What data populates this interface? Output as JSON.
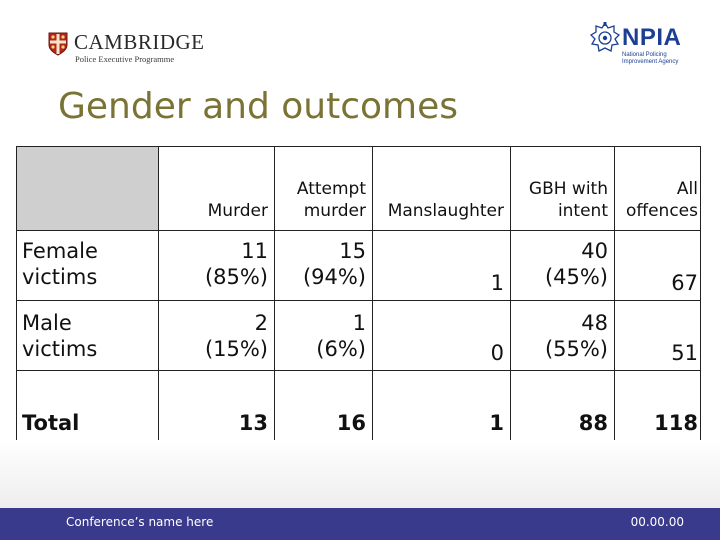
{
  "header": {
    "cambridge_name": "CAMBRIDGE",
    "cambridge_sub": "Police Executive Programme",
    "npia_name": "NPIA",
    "npia_sub_1": "National Policing",
    "npia_sub_2": "Improvement Agency"
  },
  "title": "Gender and outcomes",
  "table": {
    "columns": {
      "murder": "Murder",
      "attempt_1": "Attempt",
      "attempt_2": "murder",
      "manslaughter": "Manslaughter",
      "gbh_1": "GBH with",
      "gbh_2": "intent",
      "all_1": "All",
      "all_2": "offences"
    },
    "rows": {
      "female": {
        "label_1": "Female",
        "label_2": "victims",
        "murder_n": "11",
        "murder_p": "(85%)",
        "attempt_n": "15",
        "attempt_p": "(94%)",
        "manslaughter": "1",
        "gbh_n": "40",
        "gbh_p": "(45%)",
        "all": "67"
      },
      "male": {
        "label_1": "Male",
        "label_2": "victims",
        "murder_n": "2",
        "murder_p": "(15%)",
        "attempt_n": "1",
        "attempt_p": "(6%)",
        "manslaughter": "0",
        "gbh_n": "48",
        "gbh_p": "(55%)",
        "all": "51"
      },
      "total": {
        "label": "Total",
        "murder": "13",
        "attempt": "16",
        "manslaughter": "1",
        "gbh": "88",
        "all": "118"
      }
    }
  },
  "footer": {
    "left": "Conference’s name here",
    "right": "00.00.00"
  },
  "colors": {
    "title": "#7a7334",
    "footer_bar": "#3a3a8c",
    "npia_blue": "#1c3f94",
    "header_cell": "#cfcfcf"
  }
}
